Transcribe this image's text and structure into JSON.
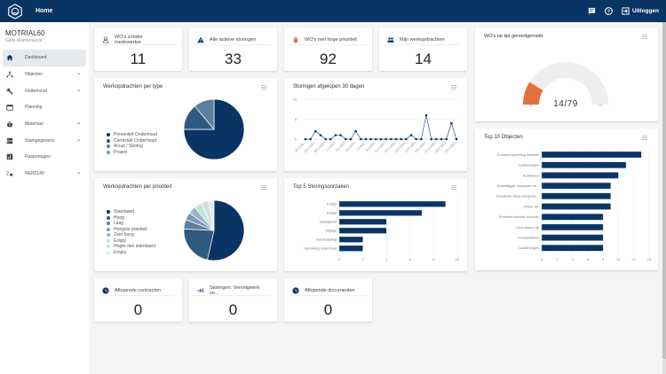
{
  "topbar": {
    "title": "Home",
    "logout_label": "Uitloggen",
    "icons": [
      "chat-icon",
      "help-icon",
      "logout-icon"
    ]
  },
  "sidebar": {
    "brand_title": "MOTRIAL60",
    "brand_subtitle": "Gilde Maintenance",
    "items": [
      {
        "label": "Dashboard",
        "icon": "home-icon",
        "active": true,
        "expandable": false
      },
      {
        "label": "Objecten",
        "icon": "hierarchy-icon",
        "expandable": true
      },
      {
        "label": "Onderhoud",
        "icon": "wrench-icon",
        "expandable": true
      },
      {
        "label": "Planning",
        "icon": "calendar-icon",
        "expandable": false
      },
      {
        "label": "Materiaal",
        "icon": "basket-icon",
        "expandable": true
      },
      {
        "label": "Stamgegevens",
        "icon": "storage-icon",
        "expandable": true
      },
      {
        "label": "Rapportages",
        "icon": "report-icon",
        "expandable": false
      },
      {
        "label": "NEN3140",
        "icon": "electric-icon",
        "expandable": true
      }
    ]
  },
  "kpis": [
    {
      "label": "WO's zonder medewerker",
      "value": "11",
      "icon": "person-icon",
      "color": "#555555"
    },
    {
      "label": "Alle actieve storingen",
      "value": "33",
      "icon": "warning-icon",
      "color": "#0a3463"
    },
    {
      "label": "WO's met hoge prioriteit",
      "value": "92",
      "icon": "bell-icon",
      "color": "#e2553a"
    },
    {
      "label": "Mijn werkopdrachten",
      "value": "14",
      "icon": "people-icon",
      "color": "#0a3463"
    }
  ],
  "kpis_bottom": [
    {
      "label": "Aflopende contracten",
      "value": "0",
      "icon": "clock-icon"
    },
    {
      "label": "Storingen: Vervolgwerk ve...",
      "value": "0",
      "icon": "arrow-in-icon"
    },
    {
      "label": "Aflopende documenten",
      "value": "0",
      "icon": "clock-icon"
    }
  ],
  "gauge": {
    "title": "WO's op tijd gereedgemeld",
    "value": 14,
    "max": 79,
    "min_label": "0",
    "max_label": "79",
    "display": "14/79",
    "color": "#e2703f"
  },
  "chart_data": [
    {
      "type": "pie",
      "title": "Werkopdrachten per type",
      "labels": [
        "Preventief Onderhoud",
        "Correctief Onderhoud",
        "Acuut / Storing",
        "Project"
      ],
      "values": [
        75,
        14,
        11,
        0
      ],
      "colors": [
        "#0a3463",
        "#2e5a80",
        "#5b7f9f",
        "#7b9ab6"
      ]
    },
    {
      "type": "line",
      "title": "Storingen afgelopen 30 dagen",
      "x": [
        "26-1-20...",
        "27-1-2021",
        "28-1-2021",
        "29-1-2021",
        "30-1-2021",
        "31-1-2021",
        "1-2-2021",
        "2-2-2021",
        "3-2-2021",
        "4-2-2021",
        "5-2-2021",
        "6-2-2021",
        "7-2-2021",
        "8-2-2021",
        "9-2-2021",
        "10-2-2021",
        "11-2-2021",
        "12-2-2021",
        "13-2-2021",
        "14-2-2021",
        "15-2-2021",
        "16-2-2021",
        "17-2-2021",
        "18-2-2021",
        "19-2-2021",
        "20-2-2021",
        "21-2-2021",
        "22-2-2021",
        "23-2-2021",
        "24-2-2021",
        "25-2-2021"
      ],
      "tick_labels": [
        "26-1-20...",
        "28-1-2021",
        "30-1-2021",
        "1-2-2021",
        "3-2-2021",
        "5-2-2021",
        "7-2-2021",
        "9-2-2021",
        "11-2-2021",
        "13-2-2021",
        "15-2-2021",
        "17-2-2021",
        "19-2-2021",
        "21-2-2021",
        "23-2-2021",
        "25-2-2021"
      ],
      "values": [
        0,
        0,
        2,
        1,
        0,
        0,
        1,
        1,
        0,
        0,
        2,
        0,
        0,
        0,
        0,
        0,
        0,
        0,
        0,
        0,
        0,
        1,
        0,
        0,
        6,
        0,
        0,
        0,
        0,
        4,
        0
      ],
      "ylim": [
        0,
        10
      ],
      "yticks": [
        "0",
        "5",
        "10"
      ],
      "color": "#0a3463"
    },
    {
      "type": "pie",
      "title": "Werkopdrachten per prioriteit",
      "labels": [
        "Standaard",
        "Hoog",
        "Laag",
        "Hoogste prioriteit",
        "Zeer hoog",
        "Empty",
        "Hoger dan standaard",
        "Empty"
      ],
      "values": [
        53,
        22,
        5,
        4,
        4,
        4,
        4,
        3
      ],
      "colors": [
        "#0a3463",
        "#2e5a80",
        "#5b7f9f",
        "#7b9ab6",
        "#9fb3c7",
        "#bde6d9",
        "#cfe0e3",
        "#e4ecf0"
      ]
    },
    {
      "type": "bar",
      "orientation": "horizontal",
      "title": "Top 5 Storingsoorzaken",
      "categories": [
        "Empty",
        "Empty",
        "Nalatigheid",
        "Slijtage",
        "Overbelasting",
        "Gebrekkig onderhoud"
      ],
      "values": [
        9,
        7,
        4,
        4,
        2,
        2
      ],
      "xlim": [
        0,
        10
      ],
      "xticks": [
        "0",
        "2",
        "4",
        "6",
        "8",
        "10"
      ],
      "color": "#0a3463"
    },
    {
      "type": "bar",
      "orientation": "horizontal",
      "title": "Top 10 Objecten",
      "categories": [
        "Enrobeeropstelling Karamel",
        "Ladderwagen",
        "Achtbanen",
        "Dubbelligger loopkraan ha...",
        "Industriele deeg mengmac...",
        "Printer HP",
        "Enrobeermachine Karamel",
        "Lava cakes Lijn",
        "Koekjesfabiek",
        "Ladderwagen"
      ],
      "values": [
        13,
        11,
        10,
        9,
        9,
        9,
        8,
        8,
        8,
        8
      ],
      "xlim": [
        0,
        14
      ],
      "xticks": [
        "0",
        "2",
        "4",
        "6",
        "8",
        "10",
        "12",
        "14"
      ],
      "color": "#0a3463"
    }
  ]
}
